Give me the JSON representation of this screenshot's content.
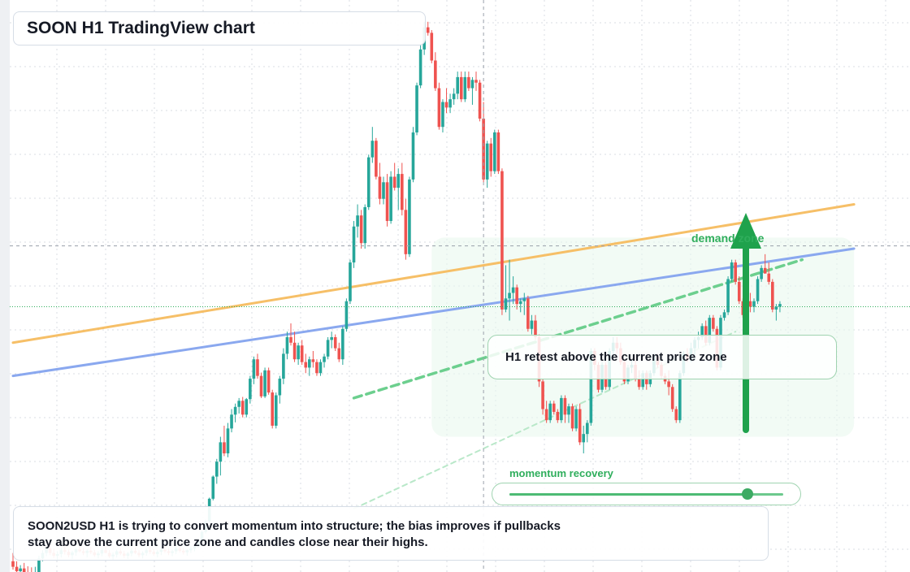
{
  "header": {
    "title": "SOON H1 TradingView chart"
  },
  "annotations": {
    "demand_zone_label": "demand zone",
    "retest_label": "H1 retest above the current price zone",
    "momentum_label": "momentum recovery",
    "momentum_level": 0.87
  },
  "note": {
    "text": "SOON2USD H1 is trying to convert momentum into structure; the bias improves if pullbacks stay above the current price zone and candles close near their highs."
  },
  "colors": {
    "up": "#26a69a",
    "down": "#ef5350",
    "zone_green": "#2fae5c",
    "trend_orange": "#f6bf67",
    "trend_blue": "#8aa8ef",
    "grid": "#d9dde3"
  },
  "chart_data": {
    "type": "candlestick",
    "symbol": "SOON2USD",
    "timeframe": "H1",
    "title": "SOON H1 TradingView chart",
    "ylim": [
      0,
      100
    ],
    "grid": true,
    "crosshair": {
      "candle_index": 127,
      "price": 58.5
    },
    "current_price": 47.5,
    "candles": [
      [
        1.5,
        3,
        0,
        0.5
      ],
      [
        0.5,
        1.5,
        -1,
        -0.3
      ],
      [
        -0.3,
        0.8,
        -1.2,
        0.2
      ],
      [
        0.2,
        1.2,
        -0.8,
        -0.6
      ],
      [
        -0.6,
        0.6,
        -1.5,
        -0.9
      ],
      [
        -0.9,
        0.4,
        -1.8,
        -1.2
      ],
      [
        -1.2,
        0.5,
        -1.6,
        -1
      ],
      [
        -1,
        2.5,
        -1.2,
        2
      ],
      [
        2,
        3.5,
        1.5,
        3
      ],
      [
        3,
        4.2,
        2.4,
        3.8
      ],
      [
        3.8,
        4.5,
        2.6,
        3
      ],
      [
        3,
        3.8,
        2.1,
        2.5
      ],
      [
        2.5,
        3.3,
        1.8,
        2.8
      ],
      [
        2.8,
        3.9,
        2.2,
        3.5
      ],
      [
        3.5,
        4.1,
        2.7,
        3.2
      ],
      [
        3.2,
        3.6,
        2.2,
        2.6
      ],
      [
        2.6,
        3.4,
        1.9,
        3.1
      ],
      [
        3.1,
        4,
        2.5,
        3.7
      ],
      [
        3.7,
        4.4,
        3.1,
        3.3
      ],
      [
        3.3,
        3.9,
        2.6,
        3
      ],
      [
        3,
        3.7,
        2.2,
        3.4
      ],
      [
        3.4,
        4.1,
        2.8,
        3.1
      ],
      [
        3.1,
        3.6,
        2.3,
        2.6
      ],
      [
        2.6,
        3.3,
        2,
        2.9
      ],
      [
        2.9,
        3.8,
        2.4,
        3.5
      ],
      [
        3.5,
        4.2,
        2.9,
        3
      ],
      [
        3,
        3.5,
        2.1,
        2.4
      ],
      [
        2.4,
        3.1,
        1.8,
        2.7
      ],
      [
        2.7,
        3.6,
        2.2,
        3.3
      ],
      [
        3.3,
        3.9,
        2.6,
        2.9
      ],
      [
        2.9,
        3.4,
        2.1,
        2.5
      ],
      [
        2.5,
        3.2,
        1.9,
        2.9
      ],
      [
        2.9,
        3.8,
        2.4,
        3.4
      ],
      [
        3.4,
        4,
        2.8,
        3
      ],
      [
        3,
        3.5,
        2.2,
        2.6
      ],
      [
        2.6,
        3.3,
        2,
        3
      ],
      [
        3,
        3.8,
        2.5,
        3.5
      ],
      [
        3.5,
        4.1,
        2.8,
        3.2
      ],
      [
        3.2,
        3.7,
        2.5,
        2.8
      ],
      [
        2.8,
        3.5,
        2.2,
        3.2
      ],
      [
        3.2,
        3.9,
        2.6,
        3.6
      ],
      [
        3.6,
        4.2,
        3,
        3.3
      ],
      [
        3.3,
        3.8,
        2.6,
        3
      ],
      [
        3,
        3.6,
        2.4,
        3.3
      ],
      [
        3.3,
        4.1,
        2.8,
        3.8
      ],
      [
        3.8,
        4.4,
        3.1,
        3.4
      ],
      [
        3.4,
        3.9,
        2.7,
        3.1
      ],
      [
        3.1,
        3.7,
        2.5,
        3.5
      ],
      [
        3.5,
        4.2,
        3,
        3.8
      ],
      [
        3.8,
        4.5,
        3.3,
        4.2
      ],
      [
        4.2,
        5.5,
        3.9,
        5.2
      ],
      [
        5.2,
        7,
        4.9,
        6.8
      ],
      [
        6.8,
        9,
        6.5,
        8.7
      ],
      [
        8.7,
        13,
        8.5,
        12.8
      ],
      [
        12.8,
        17,
        12.5,
        16.8
      ],
      [
        16.8,
        20,
        15.5,
        19.5
      ],
      [
        19.5,
        24,
        17,
        23
      ],
      [
        23,
        26,
        20.5,
        21
      ],
      [
        21,
        26.5,
        20.3,
        25.5
      ],
      [
        25.5,
        29,
        24.8,
        28
      ],
      [
        28,
        30,
        26.6,
        29.4
      ],
      [
        29.4,
        31,
        28.2,
        30.5
      ],
      [
        30.5,
        31.2,
        27.5,
        28
      ],
      [
        28,
        31,
        27.5,
        30.8
      ],
      [
        30.8,
        35,
        30,
        34.5
      ],
      [
        34.5,
        38.5,
        33.5,
        38
      ],
      [
        38,
        39,
        34.5,
        35
      ],
      [
        35,
        35.6,
        31,
        31.3
      ],
      [
        31.3,
        36.5,
        31,
        36
      ],
      [
        36,
        36.5,
        31.6,
        32
      ],
      [
        32,
        32.5,
        25.5,
        26
      ],
      [
        26,
        32,
        25.5,
        31.5
      ],
      [
        31.5,
        35,
        30,
        34.5
      ],
      [
        34.5,
        40,
        33.5,
        39
      ],
      [
        39,
        43,
        38,
        42
      ],
      [
        42,
        44.5,
        40.5,
        41
      ],
      [
        41,
        43,
        37.5,
        38
      ],
      [
        38,
        41,
        37,
        40.5
      ],
      [
        40.5,
        41.5,
        37,
        37.5
      ],
      [
        37.5,
        39,
        35.5,
        36.5
      ],
      [
        36.5,
        38.5,
        35,
        38
      ],
      [
        38,
        39.5,
        36.5,
        37.5
      ],
      [
        37.5,
        38,
        35,
        35.5
      ],
      [
        35.5,
        38,
        35,
        37.5
      ],
      [
        37.5,
        39,
        36.5,
        38.5
      ],
      [
        38.5,
        42,
        38,
        41.5
      ],
      [
        41.5,
        43,
        40,
        42
      ],
      [
        42,
        42.5,
        39.5,
        40
      ],
      [
        40,
        41,
        37.5,
        38
      ],
      [
        38,
        44,
        37,
        43.5
      ],
      [
        43.5,
        49,
        43,
        48.5
      ],
      [
        48.5,
        56,
        48,
        55.5
      ],
      [
        55.5,
        63,
        54.5,
        62
      ],
      [
        62,
        66,
        60,
        64
      ],
      [
        64,
        65,
        58,
        59
      ],
      [
        59,
        66,
        58,
        65.5
      ],
      [
        65.5,
        75,
        65,
        74.5
      ],
      [
        74.5,
        80,
        73.5,
        77.5
      ],
      [
        77.5,
        78,
        70.5,
        71
      ],
      [
        71,
        73.5,
        66,
        67
      ],
      [
        67,
        71,
        66,
        70
      ],
      [
        70,
        71.5,
        62,
        63
      ],
      [
        63,
        72,
        62.5,
        71
      ],
      [
        71,
        73.5,
        68.5,
        69
      ],
      [
        69,
        72.5,
        65,
        71.5
      ],
      [
        71.5,
        73.5,
        64,
        65
      ],
      [
        65,
        67,
        56,
        57
      ],
      [
        57,
        71,
        56.5,
        70.5
      ],
      [
        70.5,
        80,
        70,
        79
      ],
      [
        79,
        88,
        78.5,
        87.5
      ],
      [
        87.5,
        95,
        87,
        94
      ],
      [
        94,
        99,
        93,
        98
      ],
      [
        98,
        99,
        96.5,
        97
      ],
      [
        97,
        97.5,
        91.5,
        92
      ],
      [
        92,
        93.5,
        86.5,
        87
      ],
      [
        87,
        88,
        79.5,
        80
      ],
      [
        80,
        85,
        79,
        84.5
      ],
      [
        84.5,
        87,
        82.5,
        83.5
      ],
      [
        83.5,
        86,
        82.5,
        85
      ],
      [
        85,
        87,
        84,
        86
      ],
      [
        86,
        90,
        85,
        89
      ],
      [
        89,
        90,
        84.5,
        85
      ],
      [
        85,
        90,
        84.5,
        89
      ],
      [
        89,
        90,
        86.5,
        87
      ],
      [
        87,
        89,
        84,
        88.5
      ],
      [
        88.5,
        90,
        86.5,
        88
      ],
      [
        88,
        88.5,
        81,
        81.5
      ],
      [
        81.5,
        84.5,
        70,
        70.5
      ],
      [
        70.5,
        77.5,
        69,
        77
      ],
      [
        77,
        78,
        71,
        72
      ],
      [
        72,
        79.5,
        71.5,
        79
      ],
      [
        79,
        79.5,
        71.5,
        72
      ],
      [
        72,
        72.5,
        46,
        47
      ],
      [
        47,
        55,
        46.5,
        49
      ],
      [
        49,
        56,
        45,
        50
      ],
      [
        50,
        53,
        48,
        51
      ],
      [
        51,
        51.5,
        47,
        48
      ],
      [
        48,
        49,
        46.5,
        48.5
      ],
      [
        48.5,
        50,
        46,
        49
      ],
      [
        49,
        49.5,
        43,
        43.5
      ],
      [
        43.5,
        46,
        42.5,
        45
      ],
      [
        45,
        46,
        41.5,
        42
      ],
      [
        42,
        42.5,
        33,
        34
      ],
      [
        34,
        34.5,
        28,
        29
      ],
      [
        29,
        30.5,
        26.5,
        27
      ],
      [
        27,
        30.5,
        26.5,
        30
      ],
      [
        30,
        30.5,
        28,
        28.5
      ],
      [
        28.5,
        29,
        26.5,
        27
      ],
      [
        27,
        31.5,
        26.5,
        31
      ],
      [
        31,
        31.5,
        26.5,
        28
      ],
      [
        28,
        30,
        26.5,
        29.5
      ],
      [
        29.5,
        30,
        25,
        25.5
      ],
      [
        25.5,
        29.5,
        25,
        29
      ],
      [
        29,
        30,
        22.5,
        23
      ],
      [
        23,
        26,
        21,
        24.5
      ],
      [
        24.5,
        27,
        23,
        26.5
      ],
      [
        26.5,
        40,
        26,
        39.5
      ],
      [
        39.5,
        40,
        36,
        37
      ],
      [
        37,
        37.5,
        32,
        32.5
      ],
      [
        32.5,
        37.5,
        32,
        37
      ],
      [
        37,
        37.5,
        32.5,
        33
      ],
      [
        33,
        40,
        32.5,
        39.5
      ],
      [
        39.5,
        42,
        38.5,
        41
      ],
      [
        41,
        42,
        39,
        40
      ],
      [
        40,
        41,
        37,
        37.5
      ],
      [
        37.5,
        38,
        33.5,
        34
      ],
      [
        34,
        37,
        33.5,
        36.5
      ],
      [
        36.5,
        38,
        35.5,
        37
      ],
      [
        37,
        38.5,
        34,
        34.5
      ],
      [
        34.5,
        36,
        32.5,
        33
      ],
      [
        33,
        36,
        32.5,
        35.5
      ],
      [
        35.5,
        36,
        32.5,
        33.5
      ],
      [
        33.5,
        36,
        33,
        35.5
      ],
      [
        35.5,
        39,
        35,
        38.5
      ],
      [
        38.5,
        39,
        36.5,
        37
      ],
      [
        37,
        37.5,
        34.5,
        35
      ],
      [
        35,
        35.5,
        33.5,
        34
      ],
      [
        34,
        36,
        31.5,
        33
      ],
      [
        33,
        33.5,
        28.5,
        29
      ],
      [
        29,
        29.5,
        26.5,
        27
      ],
      [
        27,
        36,
        26.5,
        35.5
      ],
      [
        35.5,
        39.5,
        35,
        39
      ],
      [
        39,
        40,
        37.5,
        38
      ],
      [
        38,
        41,
        37.5,
        40
      ],
      [
        40,
        42,
        38,
        41.5
      ],
      [
        41.5,
        43,
        40,
        42
      ],
      [
        42,
        44.5,
        41.5,
        44
      ],
      [
        44,
        45,
        40.5,
        41
      ],
      [
        41,
        46,
        40.5,
        45.5
      ],
      [
        45.5,
        46,
        43,
        43.5
      ],
      [
        43.5,
        44,
        36,
        36.5
      ],
      [
        36.5,
        46,
        36,
        45.5
      ],
      [
        45.5,
        47,
        45,
        46.5
      ],
      [
        46.5,
        53,
        46,
        52.5
      ],
      [
        52.5,
        56,
        52,
        55.5
      ],
      [
        55.5,
        56,
        51.5,
        52
      ],
      [
        52,
        53,
        48,
        48.5
      ],
      [
        48.5,
        49,
        45.5,
        46
      ],
      [
        46,
        49,
        45.5,
        48.5
      ],
      [
        48.5,
        50,
        46.5,
        47.5
      ],
      [
        47.5,
        49,
        46.5,
        48.5
      ],
      [
        48.5,
        53,
        48,
        52.5
      ],
      [
        52.5,
        55,
        52,
        54.5
      ],
      [
        54.5,
        57,
        53.5,
        53.5
      ],
      [
        53.5,
        55.5,
        51.5,
        52
      ],
      [
        52,
        52.5,
        46.5,
        47
      ],
      [
        47,
        48,
        45,
        47.5
      ],
      [
        47.5,
        48.5,
        46.5,
        48
      ]
    ],
    "trendlines": [
      {
        "name": "",
        "color": "orange",
        "from": {
          "candle": 0,
          "price": 41
        },
        "to": {
          "candle": 227,
          "price": 66
        }
      },
      {
        "name": "",
        "color": "blue",
        "from": {
          "candle": 0,
          "price": 35
        },
        "to": {
          "candle": 227,
          "price": 58
        }
      },
      {
        "name": "",
        "color": "green-dashed",
        "from": {
          "candle": 92,
          "price": 31
        },
        "to": {
          "candle": 213,
          "price": 56
        }
      },
      {
        "name": "",
        "color": "green-dotted-faint",
        "from": {
          "candle": 92,
          "price": 11
        },
        "to": {
          "candle": 195,
          "price": 43
        }
      }
    ]
  }
}
